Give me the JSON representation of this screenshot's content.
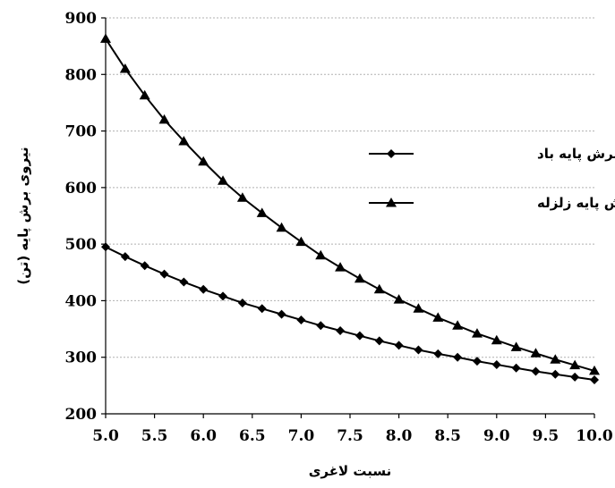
{
  "chart_data": {
    "type": "line",
    "title": "",
    "xlabel": "نسبت لاغری",
    "ylabel": "نیروی برش پایه (تن)",
    "xlim": [
      5.0,
      10.0
    ],
    "ylim": [
      200,
      900
    ],
    "xticks": [
      "5.0",
      "5.5",
      "6.0",
      "6.5",
      "7.0",
      "7.5",
      "8.0",
      "8.5",
      "9.0",
      "9.5",
      "10.0"
    ],
    "yticks": [
      "200",
      "300",
      "400",
      "500",
      "600",
      "700",
      "800",
      "900"
    ],
    "grid": "horizontal",
    "legend_position": "right",
    "x": [
      5.0,
      5.2,
      5.4,
      5.6,
      5.8,
      6.0,
      6.2,
      6.4,
      6.6,
      6.8,
      7.0,
      7.2,
      7.4,
      7.6,
      7.8,
      8.0,
      8.2,
      8.4,
      8.6,
      8.8,
      9.0,
      9.2,
      9.4,
      9.6,
      9.8,
      10.0
    ],
    "series": [
      {
        "name": "برش پایه باد",
        "marker": "diamond",
        "values": [
          495,
          478,
          462,
          447,
          433,
          420,
          408,
          396,
          386,
          376,
          366,
          356,
          347,
          338,
          329,
          321,
          313,
          306,
          300,
          293,
          287,
          281,
          275,
          270,
          265,
          260
        ]
      },
      {
        "name": "برش پایه زلزله",
        "marker": "triangle",
        "values": [
          863,
          810,
          763,
          720,
          682,
          646,
          612,
          582,
          555,
          529,
          504,
          480,
          459,
          439,
          420,
          402,
          386,
          370,
          356,
          342,
          330,
          318,
          307,
          296,
          286,
          276
        ]
      }
    ]
  }
}
